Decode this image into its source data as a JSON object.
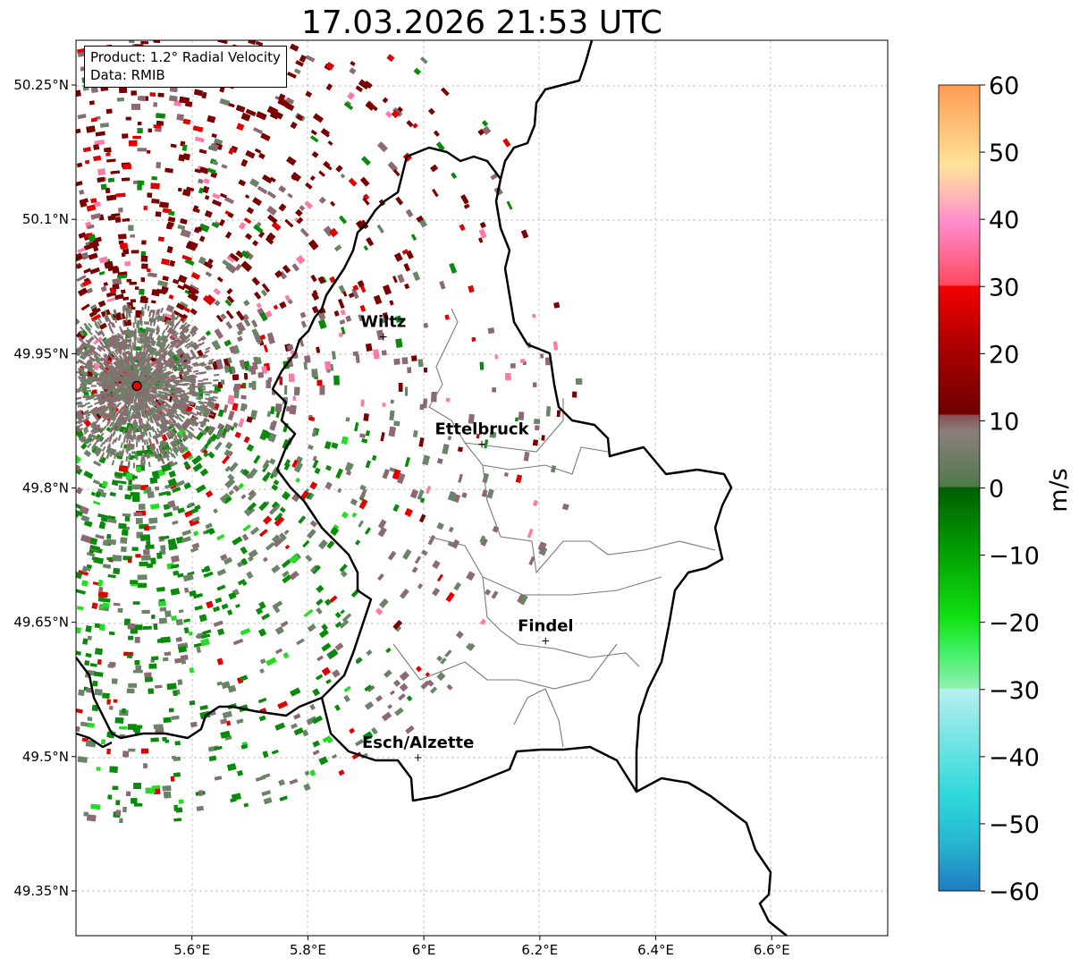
{
  "title": "17.03.2026 21:53 UTC",
  "info": {
    "product": "Product: 1.2° Radial Velocity",
    "source": "Data: RMIB"
  },
  "axes": {
    "lon_ticks": [
      "5.6°E",
      "5.8°E",
      "6°E",
      "6.2°E",
      "6.4°E",
      "6.6°E"
    ],
    "lat_ticks": [
      "50.25°N",
      "50.1°N",
      "49.95°N",
      "49.8°N",
      "49.65°N",
      "49.5°N",
      "49.35°N"
    ],
    "lon_range": [
      5.4,
      6.8
    ],
    "lat_range": [
      49.3,
      50.3
    ]
  },
  "radar_site": {
    "lon": 5.505,
    "lat": 49.914,
    "color": "#e00000"
  },
  "places": [
    {
      "name": "Wiltz",
      "lon": 5.93,
      "lat": 49.97
    },
    {
      "name": "Ettelbruck",
      "lon": 6.1,
      "lat": 49.85
    },
    {
      "name": "Findel",
      "lon": 6.21,
      "lat": 49.63
    },
    {
      "name": "Esch/Alzette",
      "lon": 5.99,
      "lat": 49.5
    }
  ],
  "colorbar": {
    "label": "m/s",
    "ticks": [
      "60",
      "50",
      "40",
      "30",
      "20",
      "10",
      "0",
      "−10",
      "−20",
      "−30",
      "−40",
      "−50",
      "−60"
    ],
    "range": [
      -60,
      60
    ]
  },
  "palette": {
    "positive_dark": "#7a0000",
    "positive_red": "#e00000",
    "positive_pink": "#ff7aa8",
    "neutral_pos": "#8c6a72",
    "neutral_neg": "#6a8468",
    "negative_green": "#0a8a0a",
    "negative_bright": "#22dd22"
  }
}
